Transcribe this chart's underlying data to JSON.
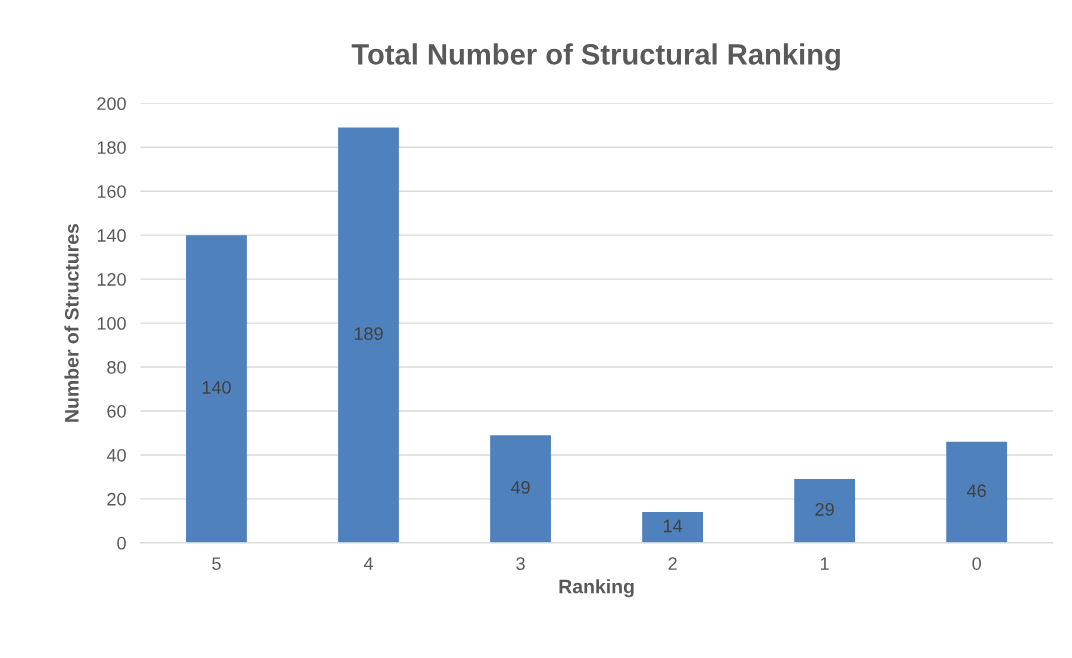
{
  "chart_data": {
    "type": "bar",
    "title": "Total Number of Structural Ranking",
    "xlabel": "Ranking",
    "ylabel": "Number of Structures",
    "categories": [
      "5",
      "4",
      "3",
      "2",
      "1",
      "0"
    ],
    "values": [
      140,
      189,
      49,
      14,
      29,
      46
    ],
    "color": "#4f81bd",
    "ylim": [
      0,
      200
    ],
    "yticks": [
      0,
      20,
      40,
      60,
      80,
      100,
      120,
      140,
      160,
      180,
      200
    ],
    "grid": "y",
    "data_labels": true
  }
}
